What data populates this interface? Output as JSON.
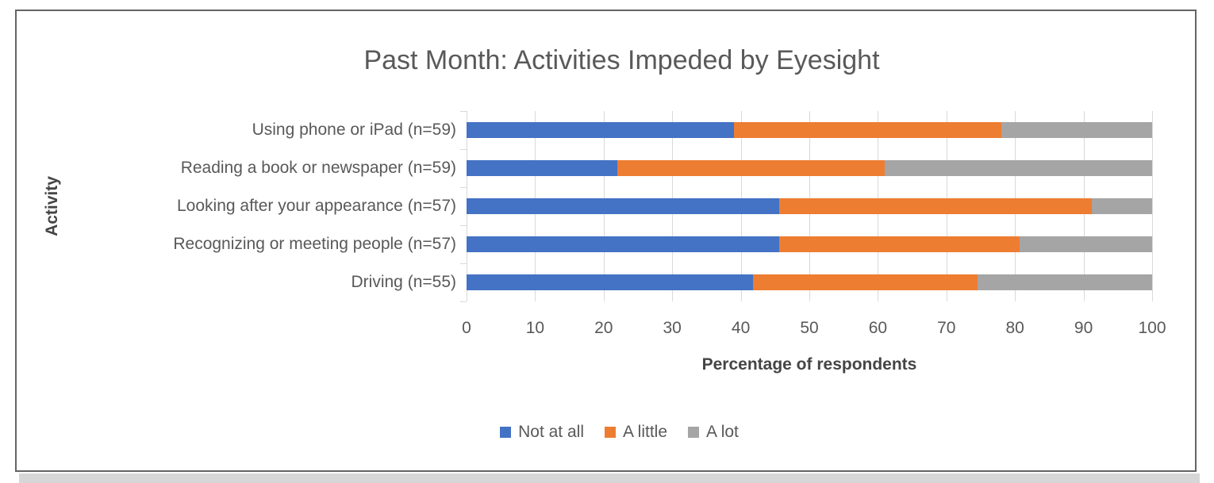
{
  "page": {
    "background": "#ffffff",
    "frame_border_color": "#646464",
    "shadow_color": "#d6d6d6"
  },
  "styles": {
    "text_color": "#595959",
    "axis_title_color": "#454545",
    "gridline_color": "#d9d9d9"
  },
  "chart_data": {
    "type": "bar",
    "variant": "horizontal-stacked-100",
    "title": "Past Month: Activities Impeded by Eyesight",
    "xlabel": "Percentage of respondents",
    "ylabel": "Activity",
    "xlim": [
      0,
      100
    ],
    "xticks": [
      0,
      10,
      20,
      30,
      40,
      50,
      60,
      70,
      80,
      90,
      100
    ],
    "grid": true,
    "legend_position": "bottom",
    "categories": [
      "Using phone or iPad (n=59)",
      "Reading a book or newspaper (n=59)",
      "Looking after your appearance (n=57)",
      "Recognizing or meeting people (n=57)",
      "Driving (n=55)"
    ],
    "series": [
      {
        "name": "Not at all",
        "color": "#4472C4",
        "values": [
          39.0,
          22.0,
          45.6,
          45.6,
          41.8
        ]
      },
      {
        "name": "A little",
        "color": "#ED7D31",
        "values": [
          39.0,
          39.0,
          45.6,
          35.1,
          32.7
        ]
      },
      {
        "name": "A lot",
        "color": "#A5A5A5",
        "values": [
          22.0,
          39.0,
          8.8,
          19.3,
          25.5
        ]
      }
    ]
  }
}
